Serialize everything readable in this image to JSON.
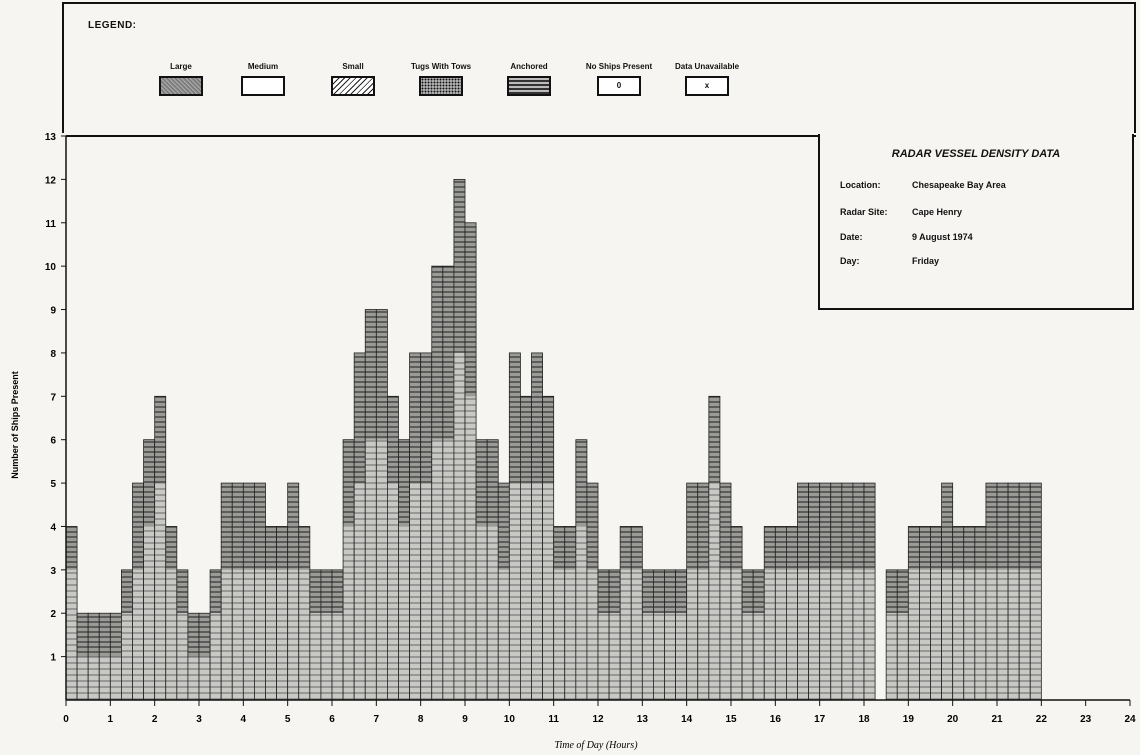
{
  "legend": {
    "title": "LEGEND:",
    "items": [
      {
        "label": "Large",
        "swatch": "large",
        "text": ""
      },
      {
        "label": "Medium",
        "swatch": "medium",
        "text": ""
      },
      {
        "label": "Small",
        "swatch": "small",
        "text": ""
      },
      {
        "label": "Tugs With Tows",
        "swatch": "tugs",
        "text": ""
      },
      {
        "label": "Anchored",
        "swatch": "anchored",
        "text": ""
      },
      {
        "label": "No Ships Present",
        "swatch": "none",
        "text": "0"
      },
      {
        "label": "Data Unavailable",
        "swatch": "na",
        "text": "x"
      }
    ]
  },
  "info": {
    "title": "RADAR VESSEL DENSITY DATA",
    "rows": [
      {
        "key": "Location:",
        "value": "Chesapeake Bay Area"
      },
      {
        "key": "Radar Site:",
        "value": "Cape Henry"
      },
      {
        "key": "Date:",
        "value": "9 August 1974"
      },
      {
        "key": "Day:",
        "value": "Friday"
      }
    ]
  },
  "chart_data": {
    "type": "bar",
    "xlabel": "Time of Day (Hours)",
    "ylabel": "Number of Ships Present",
    "xlim": [
      0,
      24
    ],
    "ylim": [
      0,
      13
    ],
    "bin_width_hours": 0.25,
    "x_ticks": [
      "0",
      "1",
      "2",
      "3",
      "4",
      "5",
      "6",
      "7",
      "8",
      "9",
      "10",
      "11",
      "12",
      "13",
      "14",
      "15",
      "16",
      "17",
      "18",
      "19",
      "20",
      "21",
      "22",
      "23",
      "24"
    ],
    "y_ticks": [
      "1",
      "2",
      "3",
      "4",
      "5",
      "6",
      "7",
      "8",
      "9",
      "10",
      "11",
      "12",
      "13"
    ],
    "values": [
      4,
      2,
      2,
      2,
      2,
      3,
      5,
      6,
      7,
      4,
      3,
      2,
      2,
      3,
      5,
      5,
      5,
      5,
      4,
      4,
      5,
      4,
      3,
      3,
      3,
      6,
      8,
      9,
      9,
      7,
      6,
      8,
      8,
      10,
      10,
      12,
      11,
      6,
      6,
      5,
      8,
      7,
      8,
      7,
      4,
      4,
      6,
      5,
      3,
      3,
      4,
      4,
      3,
      3,
      3,
      3,
      5,
      5,
      7,
      5,
      4,
      3,
      3,
      4,
      4,
      4,
      5,
      5,
      5,
      5,
      5,
      5,
      5,
      0,
      3,
      3,
      4,
      4,
      4,
      5,
      4,
      4,
      4,
      5,
      5,
      5,
      5,
      5
    ]
  }
}
